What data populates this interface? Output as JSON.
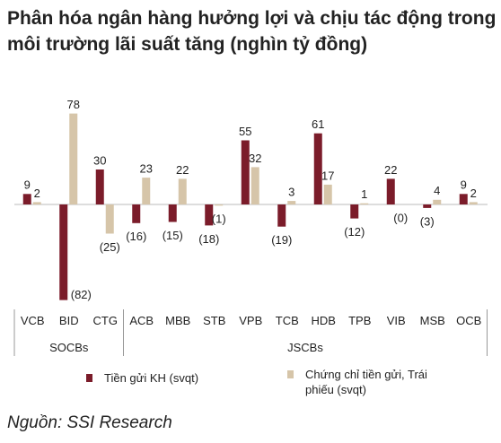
{
  "chart_data": {
    "type": "bar",
    "title": "Phân hóa ngân hàng hưởng lợi và chịu tác động trong môi trường lãi suất tăng (nghìn tỷ đồng)",
    "groups": [
      {
        "name": "SOCBs",
        "categories": [
          "VCB",
          "BID",
          "CTG"
        ]
      },
      {
        "name": "JSCBs",
        "categories": [
          "ACB",
          "MBB",
          "STB",
          "VPB",
          "TCB",
          "HDB",
          "TPB",
          "VIB",
          "MSB",
          "OCB"
        ]
      }
    ],
    "series": [
      {
        "name": "Tiền gửi KH (svqt)",
        "color": "#7b1c2a",
        "values": [
          9,
          -82,
          30,
          -16,
          -15,
          -18,
          55,
          -19,
          61,
          -12,
          22,
          -3,
          9
        ],
        "value_labels": [
          "9",
          "(82)",
          "30",
          "(16)",
          "(15)",
          "(18)",
          "55",
          "(19)",
          "61",
          "(12)",
          "22",
          "(3)",
          "9"
        ]
      },
      {
        "name": "Chứng chỉ tiền gửi, Trái phiếu (svqt)",
        "color": "#d6c5a9",
        "values": [
          2,
          78,
          -25,
          23,
          22,
          -1,
          32,
          3,
          17,
          1,
          0,
          4,
          2
        ],
        "value_labels": [
          "2",
          "78",
          "(25)",
          "23",
          "22",
          "(1)",
          "32",
          "3",
          "17",
          "1",
          "(0)",
          "4",
          "2"
        ]
      }
    ],
    "source": "Nguồn: SSI Research"
  }
}
